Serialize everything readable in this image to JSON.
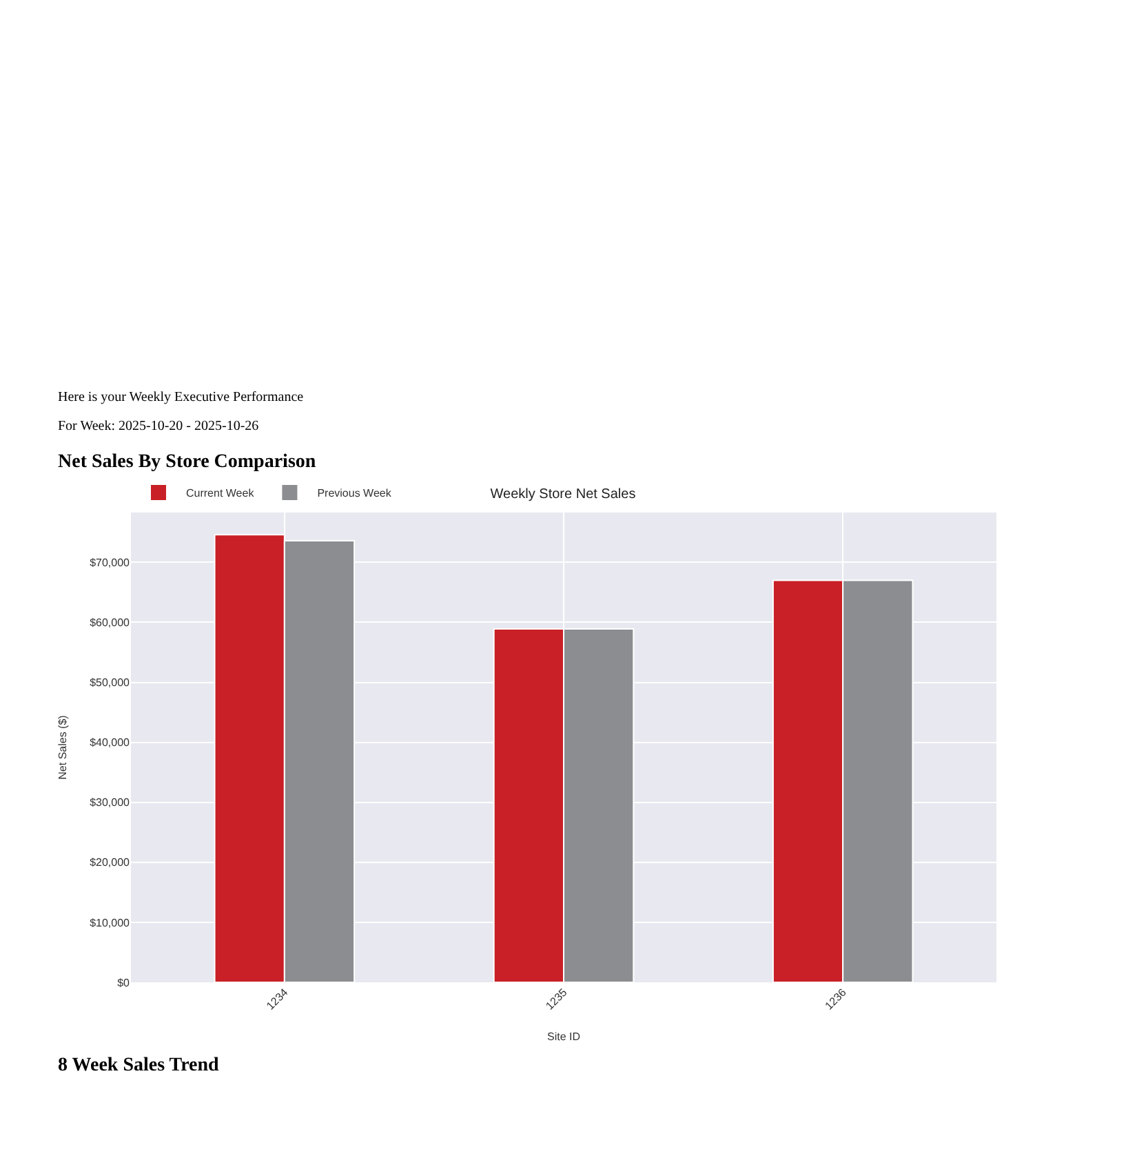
{
  "chart_data": {
    "type": "bar",
    "title": "Weekly Store Net Sales",
    "xlabel": "Site ID",
    "ylabel": "Net Sales ($)",
    "categories": [
      "1234",
      "1235",
      "1236"
    ],
    "series": [
      {
        "name": "Current Week",
        "color": "#c82026",
        "values": [
          74600,
          58900,
          67000
        ]
      },
      {
        "name": "Previous Week",
        "color": "#8c8d91",
        "values": [
          73600,
          58900,
          67000
        ]
      }
    ],
    "ylim": [
      0,
      78300
    ],
    "yticks": [
      {
        "value": 0,
        "label": "$0"
      },
      {
        "value": 10000,
        "label": "$10,000"
      },
      {
        "value": 20000,
        "label": "$20,000"
      },
      {
        "value": 30000,
        "label": "$30,000"
      },
      {
        "value": 40000,
        "label": "$40,000"
      },
      {
        "value": 50000,
        "label": "$50,000"
      },
      {
        "value": 60000,
        "label": "$60,000"
      },
      {
        "value": 70000,
        "label": "$70,000"
      }
    ],
    "grid": true,
    "legend": "top left",
    "annotations": [
      "Here is your Weekly Executive Performance",
      "For Week: 2025-10-20 - 2025-10-26",
      "Net Sales By Store Comparison",
      "8 Week Sales Trend"
    ]
  }
}
